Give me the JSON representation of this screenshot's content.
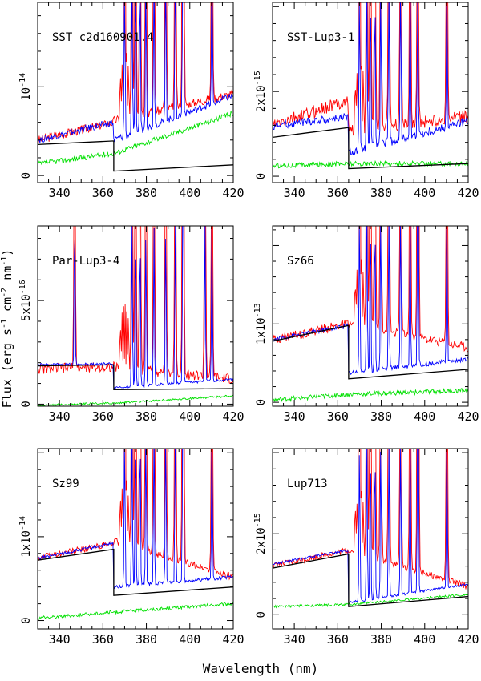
{
  "figure": {
    "ylabel_parts": [
      "Flux (erg s",
      "-1",
      " cm",
      "-2",
      " nm",
      "-1",
      ")"
    ],
    "xlabel": "Wavelength (nm)"
  },
  "colors": {
    "red": "#ff0000",
    "blue": "#0000ff",
    "green": "#00e000",
    "black": "#000000"
  },
  "chart_data": [
    {
      "type": "line",
      "title": "SST c2d160901.4",
      "xlim": [
        330,
        420
      ],
      "ylim": [
        -0.08,
        1.95
      ],
      "xticks": [
        340,
        360,
        380,
        400,
        420
      ],
      "yticks": [
        {
          "v": 0,
          "label": "0"
        },
        {
          "v": 1,
          "label": "10-14"
        }
      ],
      "series": [
        {
          "name": "red",
          "x": [
            330,
            365,
            420
          ],
          "y": [
            0.4,
            0.6,
            0.92
          ],
          "jumpAt": 365,
          "jumpY": 0.62,
          "noise": 0.05
        },
        {
          "name": "blue",
          "x": [
            330,
            365,
            420
          ],
          "y": [
            0.4,
            0.6,
            0.9
          ],
          "jumpAt": 365,
          "jumpY": 0.4,
          "noise": 0.04
        },
        {
          "name": "green",
          "x": [
            330,
            365,
            420
          ],
          "y": [
            0.13,
            0.25,
            0.7
          ],
          "noise": 0.03
        },
        {
          "name": "continuum",
          "x": [
            330,
            365,
            420
          ],
          "y": [
            0.35,
            0.39,
            0.12
          ],
          "jumpAt": 365,
          "jumpY": 0.05
        }
      ],
      "lines": [
        370.0,
        373.4,
        375.0,
        377.1,
        379.8,
        383.5,
        388.9,
        393.3,
        396.8,
        397.0,
        410.2
      ]
    },
    {
      "type": "line",
      "title": "SST-Lup3-1",
      "xlim": [
        330,
        420
      ],
      "ylim": [
        -0.15,
        4.1
      ],
      "xticks": [
        340,
        360,
        380,
        400,
        420
      ],
      "yticks": [
        {
          "v": 0,
          "label": "0"
        },
        {
          "v": 2,
          "label": "2x10-15"
        }
      ],
      "series": [
        {
          "name": "red",
          "x": [
            330,
            365,
            420
          ],
          "y": [
            1.2,
            1.8,
            1.4
          ],
          "jumpAt": 365,
          "jumpY": 1.1,
          "noise": 0.15
        },
        {
          "name": "blue",
          "x": [
            330,
            365,
            420
          ],
          "y": [
            1.2,
            1.4,
            1.3
          ],
          "jumpAt": 365,
          "jumpY": 0.55,
          "noise": 0.1
        },
        {
          "name": "green",
          "x": [
            330,
            365,
            420
          ],
          "y": [
            0.25,
            0.3,
            0.3
          ],
          "noise": 0.06
        },
        {
          "name": "continuum",
          "x": [
            330,
            365,
            420
          ],
          "y": [
            0.92,
            1.15,
            0.3
          ],
          "jumpAt": 365,
          "jumpY": 0.18
        }
      ],
      "lines": [
        370.0,
        373.4,
        375.0,
        377.1,
        379.8,
        383.5,
        388.9,
        393.3,
        396.8,
        410.2
      ]
    },
    {
      "type": "line",
      "title": "Par-Lup3-4",
      "xlim": [
        330,
        420
      ],
      "ylim": [
        -0.1,
        8.6
      ],
      "xticks": [
        340,
        360,
        380,
        400,
        420
      ],
      "yticks": [
        {
          "v": 0,
          "label": "0"
        },
        {
          "v": 5,
          "label": "5x10-16"
        }
      ],
      "series": [
        {
          "name": "red",
          "x": [
            330,
            365,
            420
          ],
          "y": [
            1.7,
            1.8,
            1.2
          ],
          "jumpAt": 365,
          "jumpY": 1.8,
          "noise": 0.25
        },
        {
          "name": "blue",
          "x": [
            330,
            365,
            420
          ],
          "y": [
            1.9,
            1.95,
            1.2
          ],
          "jumpAt": 365,
          "jumpY": 0.8,
          "noise": 0.06
        },
        {
          "name": "green",
          "x": [
            330,
            365,
            420
          ],
          "y": [
            -0.05,
            0.05,
            0.4
          ],
          "noise": 0.05
        },
        {
          "name": "continuum",
          "x": [
            330,
            365,
            420
          ],
          "y": [
            1.85,
            1.9,
            0.75
          ],
          "jumpAt": 365,
          "jumpY": 0.7
        }
      ],
      "lines": [
        347.0,
        373.4,
        375.0,
        377.1,
        379.8,
        383.5,
        388.9,
        393.3,
        396.8,
        397.0,
        407.0,
        410.2
      ]
    },
    {
      "type": "line",
      "title": "Sz66",
      "xlim": [
        330,
        420
      ],
      "ylim": [
        -0.05,
        2.25
      ],
      "xticks": [
        340,
        360,
        380,
        400,
        420
      ],
      "yticks": [
        {
          "v": 0,
          "label": "0"
        },
        {
          "v": 1,
          "label": "1x10-13"
        }
      ],
      "series": [
        {
          "name": "red",
          "x": [
            330,
            365,
            420
          ],
          "y": [
            0.8,
            1.0,
            0.7
          ],
          "jumpAt": 365,
          "jumpY": 1.0,
          "noise": 0.06
        },
        {
          "name": "blue",
          "x": [
            330,
            365,
            420
          ],
          "y": [
            0.8,
            0.98,
            0.55
          ],
          "jumpAt": 365,
          "jumpY": 0.38,
          "noise": 0.03
        },
        {
          "name": "green",
          "x": [
            330,
            365,
            420
          ],
          "y": [
            0.03,
            0.1,
            0.15
          ],
          "noise": 0.03
        },
        {
          "name": "continuum",
          "x": [
            330,
            365,
            420
          ],
          "y": [
            0.78,
            0.98,
            0.42
          ],
          "jumpAt": 365,
          "jumpY": 0.3
        }
      ],
      "lines": [
        370.0,
        373.4,
        375.0,
        377.1,
        379.8,
        383.5,
        388.9,
        393.3,
        396.8,
        397.0,
        410.2
      ]
    },
    {
      "type": "line",
      "title": "Sz99",
      "xlim": [
        330,
        420
      ],
      "ylim": [
        -0.1,
        2.05
      ],
      "xticks": [
        340,
        360,
        380,
        400,
        420
      ],
      "yticks": [
        {
          "v": 0,
          "label": "0"
        },
        {
          "v": 1,
          "label": "1x10-14"
        }
      ],
      "series": [
        {
          "name": "red",
          "x": [
            330,
            365,
            420
          ],
          "y": [
            0.75,
            0.92,
            0.52
          ],
          "jumpAt": 365,
          "jumpY": 0.95,
          "noise": 0.04
        },
        {
          "name": "blue",
          "x": [
            330,
            365,
            420
          ],
          "y": [
            0.74,
            0.92,
            0.52
          ],
          "jumpAt": 365,
          "jumpY": 0.4,
          "noise": 0.02
        },
        {
          "name": "green",
          "x": [
            330,
            365,
            420
          ],
          "y": [
            0.03,
            0.1,
            0.2
          ],
          "noise": 0.02
        },
        {
          "name": "continuum",
          "x": [
            330,
            365,
            420
          ],
          "y": [
            0.72,
            0.85,
            0.4
          ],
          "jumpAt": 365,
          "jumpY": 0.3
        }
      ],
      "lines": [
        370.0,
        373.4,
        375.0,
        377.1,
        379.8,
        383.5,
        388.9,
        393.3,
        396.8,
        397.0,
        410.2
      ]
    },
    {
      "type": "line",
      "title": "Lup713",
      "xlim": [
        330,
        420
      ],
      "ylim": [
        -0.35,
        4.1
      ],
      "xticks": [
        340,
        360,
        380,
        400,
        420
      ],
      "yticks": [
        {
          "v": 0,
          "label": "0"
        },
        {
          "v": 2,
          "label": "2x10-15"
        }
      ],
      "series": [
        {
          "name": "red",
          "x": [
            330,
            365,
            420
          ],
          "y": [
            1.2,
            1.6,
            0.7
          ],
          "jumpAt": 365,
          "jumpY": 1.6,
          "noise": 0.08
        },
        {
          "name": "blue",
          "x": [
            330,
            365,
            420
          ],
          "y": [
            1.25,
            1.6,
            0.75
          ],
          "jumpAt": 365,
          "jumpY": 0.3,
          "noise": 0.03
        },
        {
          "name": "green",
          "x": [
            330,
            365,
            420
          ],
          "y": [
            0.2,
            0.25,
            0.5
          ],
          "noise": 0.03
        },
        {
          "name": "continuum",
          "x": [
            330,
            365,
            420
          ],
          "y": [
            1.15,
            1.5,
            0.45
          ],
          "jumpAt": 365,
          "jumpY": 0.2
        }
      ],
      "lines": [
        370.0,
        373.4,
        375.0,
        377.1,
        379.8,
        383.5,
        388.9,
        393.3,
        396.8,
        397.0,
        410.2
      ]
    }
  ]
}
